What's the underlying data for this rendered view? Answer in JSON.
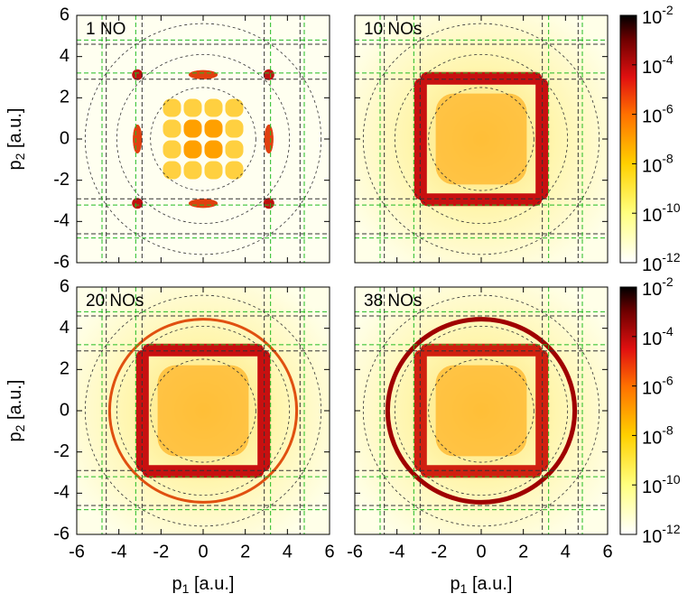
{
  "chart_data": [
    {
      "type": "heatmap",
      "annotation": "1 NO",
      "xlim": [
        -6,
        6
      ],
      "ylim": [
        -6,
        6
      ],
      "xticks": [
        -6,
        -4,
        -2,
        0,
        2,
        4,
        6
      ],
      "yticks": [
        -6,
        -4,
        -2,
        0,
        2,
        4,
        6
      ],
      "ylabel": {
        "main": "p",
        "sub": "2",
        "unit": " [a.u.]"
      },
      "guide_circles": [
        2.5,
        4.1,
        5.6
      ],
      "green_lines": [
        -4.8,
        -3.2,
        3.2,
        4.8
      ],
      "black_lines": [
        -4.6,
        -2.9,
        2.9,
        4.6
      ]
    },
    {
      "type": "heatmap",
      "annotation": "10 NOs",
      "xlim": [
        -6,
        6
      ],
      "ylim": [
        -6,
        6
      ],
      "xticks": [
        -6,
        -4,
        -2,
        0,
        2,
        4,
        6
      ],
      "yticks": [
        -6,
        -4,
        -2,
        0,
        2,
        4,
        6
      ],
      "guide_circles": [
        2.5,
        4.1,
        5.6
      ],
      "green_lines": [
        -4.8,
        -3.2,
        3.2,
        4.8
      ],
      "black_lines": [
        -4.6,
        -2.9,
        2.9,
        4.6
      ],
      "colorbar": {
        "log": true,
        "clim": [
          1e-12,
          0.01
        ],
        "ticks": [
          {
            "value": 0.01,
            "label": "10",
            "exponent": "-2"
          },
          {
            "value": 0.0001,
            "label": "10",
            "exponent": "-4"
          },
          {
            "value": 1e-06,
            "label": "10",
            "exponent": "-6"
          },
          {
            "value": 1e-08,
            "label": "10",
            "exponent": "-8"
          },
          {
            "value": 1e-10,
            "label": "10",
            "exponent": "-10"
          },
          {
            "value": 1e-12,
            "label": "10",
            "exponent": "-12"
          }
        ]
      }
    },
    {
      "type": "heatmap",
      "annotation": "20 NOs",
      "xlim": [
        -6,
        6
      ],
      "ylim": [
        -6,
        6
      ],
      "xticks": [
        -6,
        -4,
        -2,
        0,
        2,
        4,
        6
      ],
      "yticks": [
        -6,
        -4,
        -2,
        0,
        2,
        4,
        6
      ],
      "xlabel": {
        "main": "p",
        "sub": "1",
        "unit": " [a.u.]"
      },
      "ylabel": {
        "main": "p",
        "sub": "2",
        "unit": " [a.u.]"
      },
      "guide_circles": [
        2.5,
        4.1,
        5.6
      ],
      "green_lines": [
        -4.8,
        -3.2,
        3.2,
        4.8
      ],
      "black_lines": [
        -4.6,
        -2.9,
        2.9,
        4.6
      ]
    },
    {
      "type": "heatmap",
      "annotation": "38 NOs",
      "xlim": [
        -6,
        6
      ],
      "ylim": [
        -6,
        6
      ],
      "xticks": [
        -6,
        -4,
        -2,
        0,
        2,
        4,
        6
      ],
      "yticks": [
        -6,
        -4,
        -2,
        0,
        2,
        4,
        6
      ],
      "xlabel": {
        "main": "p",
        "sub": "1",
        "unit": " [a.u.]"
      },
      "guide_circles": [
        2.5,
        4.1,
        5.6
      ],
      "green_lines": [
        -4.8,
        -3.2,
        3.2,
        4.8
      ],
      "black_lines": [
        -4.6,
        -2.9,
        2.9,
        4.6
      ],
      "colorbar": {
        "log": true,
        "clim": [
          1e-12,
          0.01
        ],
        "ticks": [
          {
            "value": 0.01,
            "label": "10",
            "exponent": "-2"
          },
          {
            "value": 0.0001,
            "label": "10",
            "exponent": "-4"
          },
          {
            "value": 1e-06,
            "label": "10",
            "exponent": "-6"
          },
          {
            "value": 1e-08,
            "label": "10",
            "exponent": "-8"
          },
          {
            "value": 1e-10,
            "label": "10",
            "exponent": "-10"
          },
          {
            "value": 1e-12,
            "label": "10",
            "exponent": "-12"
          }
        ]
      }
    }
  ]
}
